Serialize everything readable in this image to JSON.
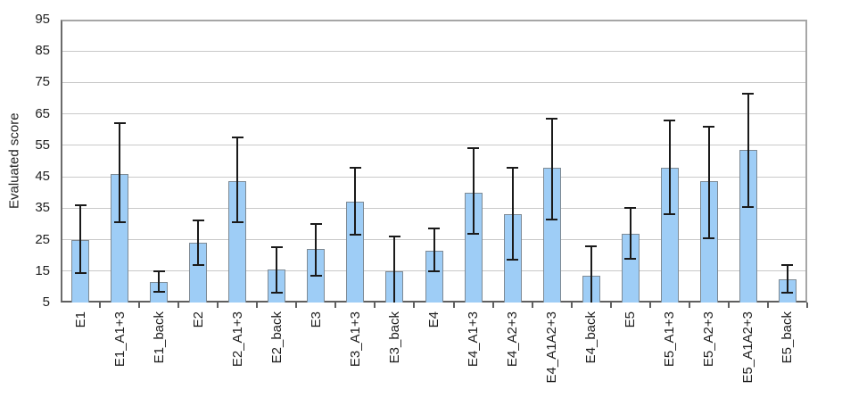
{
  "chart_data": {
    "type": "bar",
    "title": "",
    "xlabel": "",
    "ylabel": "Evaluated score",
    "ylim": [
      5,
      95
    ],
    "yticks": [
      5,
      15,
      25,
      35,
      45,
      55,
      65,
      75,
      85,
      95
    ],
    "grid": true,
    "legend": "none",
    "categories": [
      "E1",
      "E1_A1+3",
      "E1_back",
      "E2",
      "E2_A1+3",
      "E2_back",
      "E3",
      "E3_A1+3",
      "E3_back",
      "E4",
      "E4_A1+3",
      "E4_A2+3",
      "E4_A1A2+3",
      "E4_back",
      "E5",
      "E5_A1+3",
      "E5_A2+3",
      "E5_A1A2+3",
      "E5_back"
    ],
    "series": [
      {
        "name": "Evaluated score",
        "values": [
          25,
          46,
          11.5,
          24,
          43.5,
          15.5,
          22,
          37,
          15,
          21.5,
          40,
          33,
          48,
          13.5,
          27,
          48,
          43.5,
          53.5,
          12.5
        ],
        "error_low": [
          14.5,
          30.5,
          8.5,
          17,
          30.5,
          8,
          13.5,
          26.5,
          5,
          15,
          27,
          18.5,
          31.5,
          5,
          19,
          33,
          25.5,
          35.5,
          8
        ],
        "error_high": [
          36,
          62,
          15,
          31,
          57.5,
          22.5,
          30,
          48,
          26,
          28.5,
          54,
          48,
          63.5,
          23,
          35,
          63,
          61,
          71.5,
          17
        ]
      }
    ],
    "colors": {
      "bar_fill": "#9ECDF6",
      "bar_border": "#7E8A94",
      "error_bar": "#1A1A1A",
      "gridline": "#C9C9C9",
      "frame": "#A6A6A6",
      "axis": "#5F5F5F",
      "background": "#FFFFFF",
      "text": "#1F1F1F"
    }
  }
}
